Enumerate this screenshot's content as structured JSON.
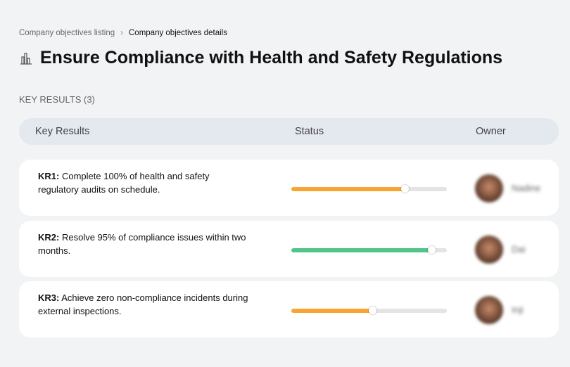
{
  "breadcrumb": {
    "parent": "Company objectives listing",
    "separator": "›",
    "current": "Company objectives details"
  },
  "title": "Ensure Compliance with Health and Safety Regulations",
  "key_results_count": "KEY RESULTS (3)",
  "columns": {
    "kr": "Key Results",
    "status": "Status",
    "owner": "Owner"
  },
  "rows": [
    {
      "label": "KR1:",
      "text": "Complete 100% of health and safety regulatory audits on schedule.",
      "progress": 73,
      "color": "#f9a533",
      "owner": "Nadine"
    },
    {
      "label": "KR2:",
      "text": "Resolve 95% of compliance issues within two months.",
      "progress": 90,
      "color": "#4fc58a",
      "owner": "Dai"
    },
    {
      "label": "KR3:",
      "text": "Achieve zero non-compliance incidents during external inspections.",
      "progress": 52,
      "color": "#f9a533",
      "owner": "Inji"
    }
  ]
}
